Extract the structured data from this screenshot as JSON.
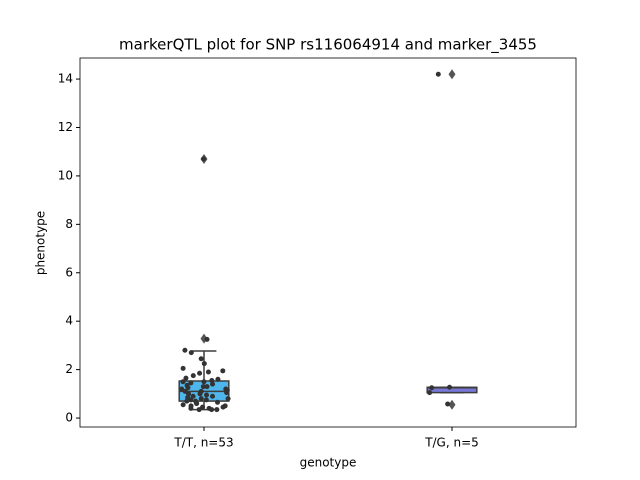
{
  "chart_data": {
    "type": "box",
    "title": "markerQTL plot for SNP rs116064914 and marker_3455",
    "x_label": "genotype",
    "y_label": "phenotype",
    "categories": [
      "T/T, n=53",
      "T/G, n=5"
    ],
    "boxes": [
      {
        "color": "#4fb6ec",
        "whislo": 0.35,
        "q1": 0.7,
        "med": 1.1,
        "q3": 1.53,
        "whishi": 2.77,
        "fliers": [
          3.28,
          10.7
        ]
      },
      {
        "color": "#7777d6",
        "whislo": 1.05,
        "q1": 1.05,
        "med": 1.25,
        "q3": 1.27,
        "whishi": 1.27,
        "fliers": [
          0.55,
          14.2
        ]
      }
    ],
    "points": [
      [
        10.7,
        3.25,
        2.8,
        2.7,
        2.45,
        2.25,
        2.05,
        1.95,
        1.9,
        1.85,
        1.75,
        1.6,
        1.55,
        1.5,
        1.5,
        1.45,
        1.4,
        1.35,
        1.3,
        1.3,
        1.25,
        1.2,
        1.2,
        1.15,
        1.1,
        1.1,
        1.05,
        1.0,
        1.0,
        0.95,
        0.9,
        0.9,
        0.85,
        0.8,
        0.8,
        0.75,
        0.75,
        0.7,
        0.7,
        0.65,
        0.6,
        0.6,
        0.55,
        0.5,
        0.5,
        0.45,
        0.45,
        0.4,
        0.4,
        0.35,
        0.35,
        0.35,
        1.65
      ],
      [
        14.2,
        1.27,
        1.25,
        1.05,
        0.58
      ]
    ],
    "ylim": [
      -0.37,
      14.87
    ],
    "yticks": [
      0,
      2,
      4,
      6,
      8,
      10,
      12,
      14
    ]
  }
}
